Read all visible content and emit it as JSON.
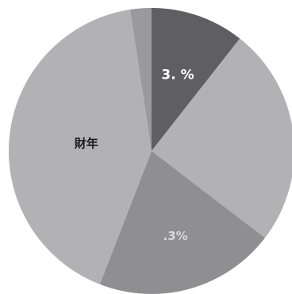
{
  "chart_data": {
    "type": "pie",
    "labels": [
      "3. %",
      "",
      ".3%",
      "財年",
      ""
    ],
    "values": [
      10.6,
      24.8,
      20.5,
      41.7,
      2.4
    ],
    "colors": {
      "slice_dark": "#5f5f61",
      "slice_light": "#b2b2b4",
      "slice_mid": "#8f8f91",
      "slice_thin": "#9a9a9c",
      "label_light": "#ffffff",
      "label_dark": "#1a1a1a",
      "label_faded": "#d8d8d8",
      "background": "#ffffff"
    },
    "legend": "none",
    "start_angle_deg": 0
  }
}
